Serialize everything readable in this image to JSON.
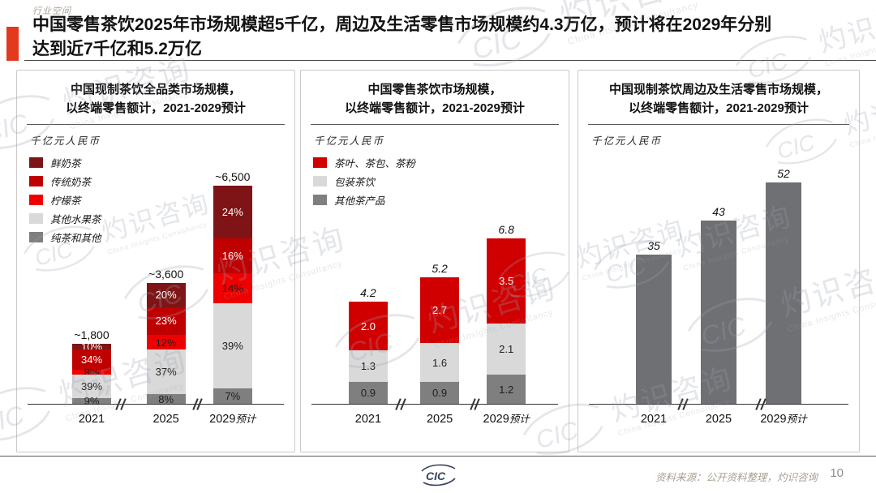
{
  "page": {
    "eyebrow": "行业空间",
    "title_lines": [
      "中国零售茶饮2025年市场规模超5千亿，周边及生活零售市场规模约4.3万亿，预计将在2029年分别",
      "达到近7千亿和5.2万亿"
    ],
    "accent_color": "#E2391F"
  },
  "footer": {
    "source": "资料来源：公开资料整理，灼识咨询",
    "page_number": "10",
    "logo_text": "CIC"
  },
  "watermark": {
    "logo_text": "CIC",
    "zh": "灼识咨询",
    "en": "China Insights Consultancy"
  },
  "chart_data": [
    {
      "type": "bar",
      "stacked": true,
      "title_lines": [
        "中国现制茶饮全品类市场规模，",
        "以终端零售额计，2021-2029预计"
      ],
      "unit_label": "千亿元人民币",
      "categories": [
        {
          "label": "2021",
          "note": ""
        },
        {
          "label": "2025",
          "note": ""
        },
        {
          "label": "2029",
          "note": "预计"
        }
      ],
      "bar_totals_display": [
        "~1,800",
        "~3,600",
        "~6,500"
      ],
      "bar_totals": [
        1800,
        3600,
        6500
      ],
      "totals_italic": false,
      "value_mode": "percent_of_total",
      "ylim": [
        0,
        6500
      ],
      "legend_position": "top-left",
      "series": [
        {
          "name": "鲜奶茶",
          "color": "#7E1416",
          "text_color": "#FFFFFF",
          "values": [
            10,
            20,
            24
          ],
          "values_display": [
            "10%",
            "20%",
            "24%"
          ]
        },
        {
          "name": "传统奶茶",
          "color": "#C00000",
          "text_color": "#FFFFFF",
          "values": [
            34,
            23,
            16
          ],
          "values_display": [
            "34%",
            "23%",
            "16%"
          ]
        },
        {
          "name": "柠檬茶",
          "color": "#EF0000",
          "text_color": "#1F1F1F",
          "values": [
            8,
            12,
            14
          ],
          "values_display": [
            "8%",
            "12%",
            "14%"
          ]
        },
        {
          "name": "其他水果茶",
          "color": "#D9D9D9",
          "text_color": "#1F1F1F",
          "values": [
            39,
            37,
            39
          ],
          "values_display": [
            "39%",
            "37%",
            "39%"
          ]
        },
        {
          "name": "纯茶和其他",
          "color": "#7F7F7F",
          "text_color": "#1F1F1F",
          "values": [
            9,
            8,
            7
          ],
          "values_display": [
            "9%",
            "8%",
            "7%"
          ]
        }
      ]
    },
    {
      "type": "bar",
      "stacked": true,
      "title_lines": [
        "中国零售茶饮市场规模，",
        "以终端零售额计，2021-2029预计"
      ],
      "unit_label": "千亿元人民币",
      "categories": [
        {
          "label": "2021",
          "note": ""
        },
        {
          "label": "2025",
          "note": ""
        },
        {
          "label": "2029",
          "note": "预计"
        }
      ],
      "bar_totals_display": [
        "4.2",
        "5.2",
        "6.8"
      ],
      "bar_totals": [
        4.2,
        5.2,
        6.8
      ],
      "totals_italic": true,
      "value_mode": "absolute",
      "ylim": [
        0,
        6.8
      ],
      "legend_position": "top-left",
      "series": [
        {
          "name": "茶叶、茶包、茶粉",
          "color": "#D00000",
          "text_color": "#FFFFFF",
          "values": [
            2.0,
            2.7,
            3.5
          ],
          "values_display": [
            "2.0",
            "2.7",
            "3.5"
          ]
        },
        {
          "name": "包装茶饮",
          "color": "#D9D9D9",
          "text_color": "#1F1F1F",
          "values": [
            1.3,
            1.6,
            2.1
          ],
          "values_display": [
            "1.3",
            "1.6",
            "2.1"
          ]
        },
        {
          "name": "其他茶产品",
          "color": "#7F7F7F",
          "text_color": "#1F1F1F",
          "values": [
            0.9,
            0.9,
            1.2
          ],
          "values_display": [
            "0.9",
            "0.9",
            "1.2"
          ]
        }
      ]
    },
    {
      "type": "bar",
      "stacked": false,
      "title_lines": [
        "中国现制茶饮周边及生活零售市场规模，",
        "以终端零售额计，2021-2029预计"
      ],
      "unit_label": "千亿元人民币",
      "categories": [
        {
          "label": "2021",
          "note": ""
        },
        {
          "label": "2025",
          "note": ""
        },
        {
          "label": "2029",
          "note": "预计"
        }
      ],
      "bar_totals_display": [
        "35",
        "43",
        "52"
      ],
      "bar_totals": [
        35,
        43,
        52
      ],
      "totals_italic": true,
      "value_mode": "absolute",
      "ylim": [
        0,
        52
      ],
      "legend_position": "none",
      "series": [
        {
          "name": "",
          "color": "#6F7073",
          "text_color": "#FFFFFF",
          "values": [
            35,
            43,
            52
          ],
          "values_display": null
        }
      ]
    }
  ]
}
